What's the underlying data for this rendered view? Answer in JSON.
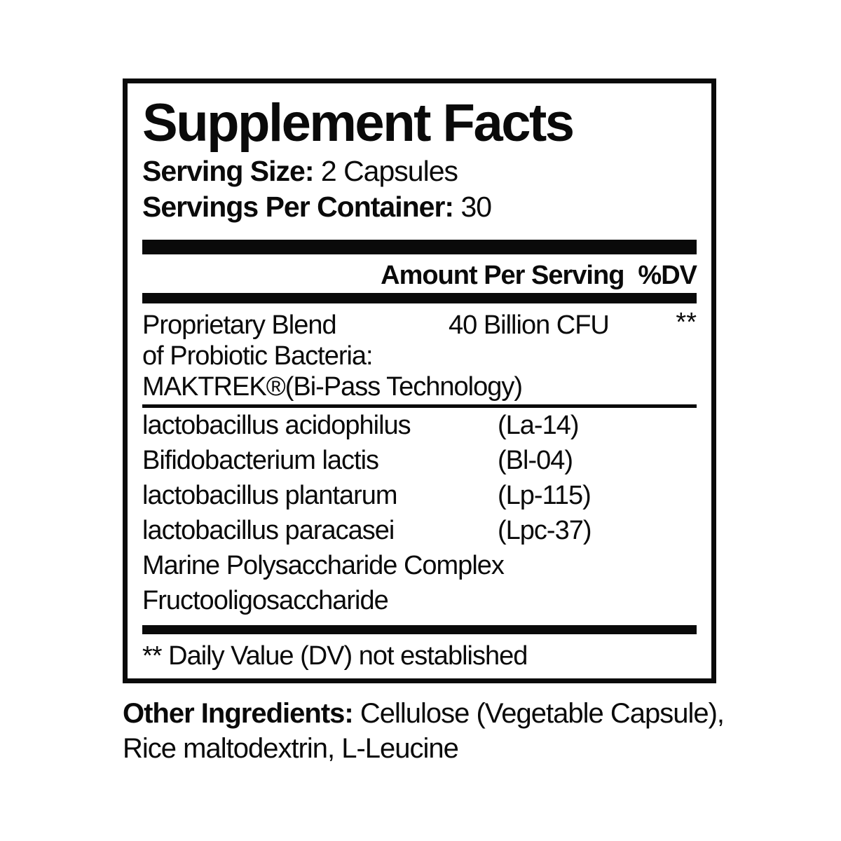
{
  "label": {
    "title": "Supplement Facts",
    "serving_size_label": "Serving Size:",
    "serving_size_value": " 2 Capsules",
    "servings_per_container_label": "Servings Per Container:",
    "servings_per_container_value": " 30",
    "column_header": {
      "amount": "Amount Per Serving",
      "dv": "%DV"
    },
    "proprietary_blend": {
      "name_line1": "Proprietary Blend",
      "name_line2": "of Probiotic Bacteria:",
      "name_line3": "MAKTREK®(Bi-Pass Technology)",
      "amount": "40 Billion CFU",
      "dv": "**"
    },
    "ingredients": [
      {
        "name": "lactobacillus acidophilus",
        "code": "(La-14)"
      },
      {
        "name": "Bifidobacterium lactis",
        "code": "(Bl-04)"
      },
      {
        "name": "lactobacillus plantarum",
        "code": "(Lp-115)"
      },
      {
        "name": "lactobacillus paracasei",
        "code": "(Lpc-37)"
      },
      {
        "name": "Marine Polysaccharide Complex",
        "code": ""
      },
      {
        "name": "Fructooligosaccharide",
        "code": ""
      }
    ],
    "footnote": "** Daily Value (DV) not established"
  },
  "other_ingredients": {
    "label": "Other Ingredients:",
    "line1_rest": " Cellulose (Vegetable Capsule),",
    "line2": "Rice maltodextrin, L-Leucine"
  },
  "colors": {
    "ink": "#0a0a0a",
    "background": "#ffffff"
  }
}
